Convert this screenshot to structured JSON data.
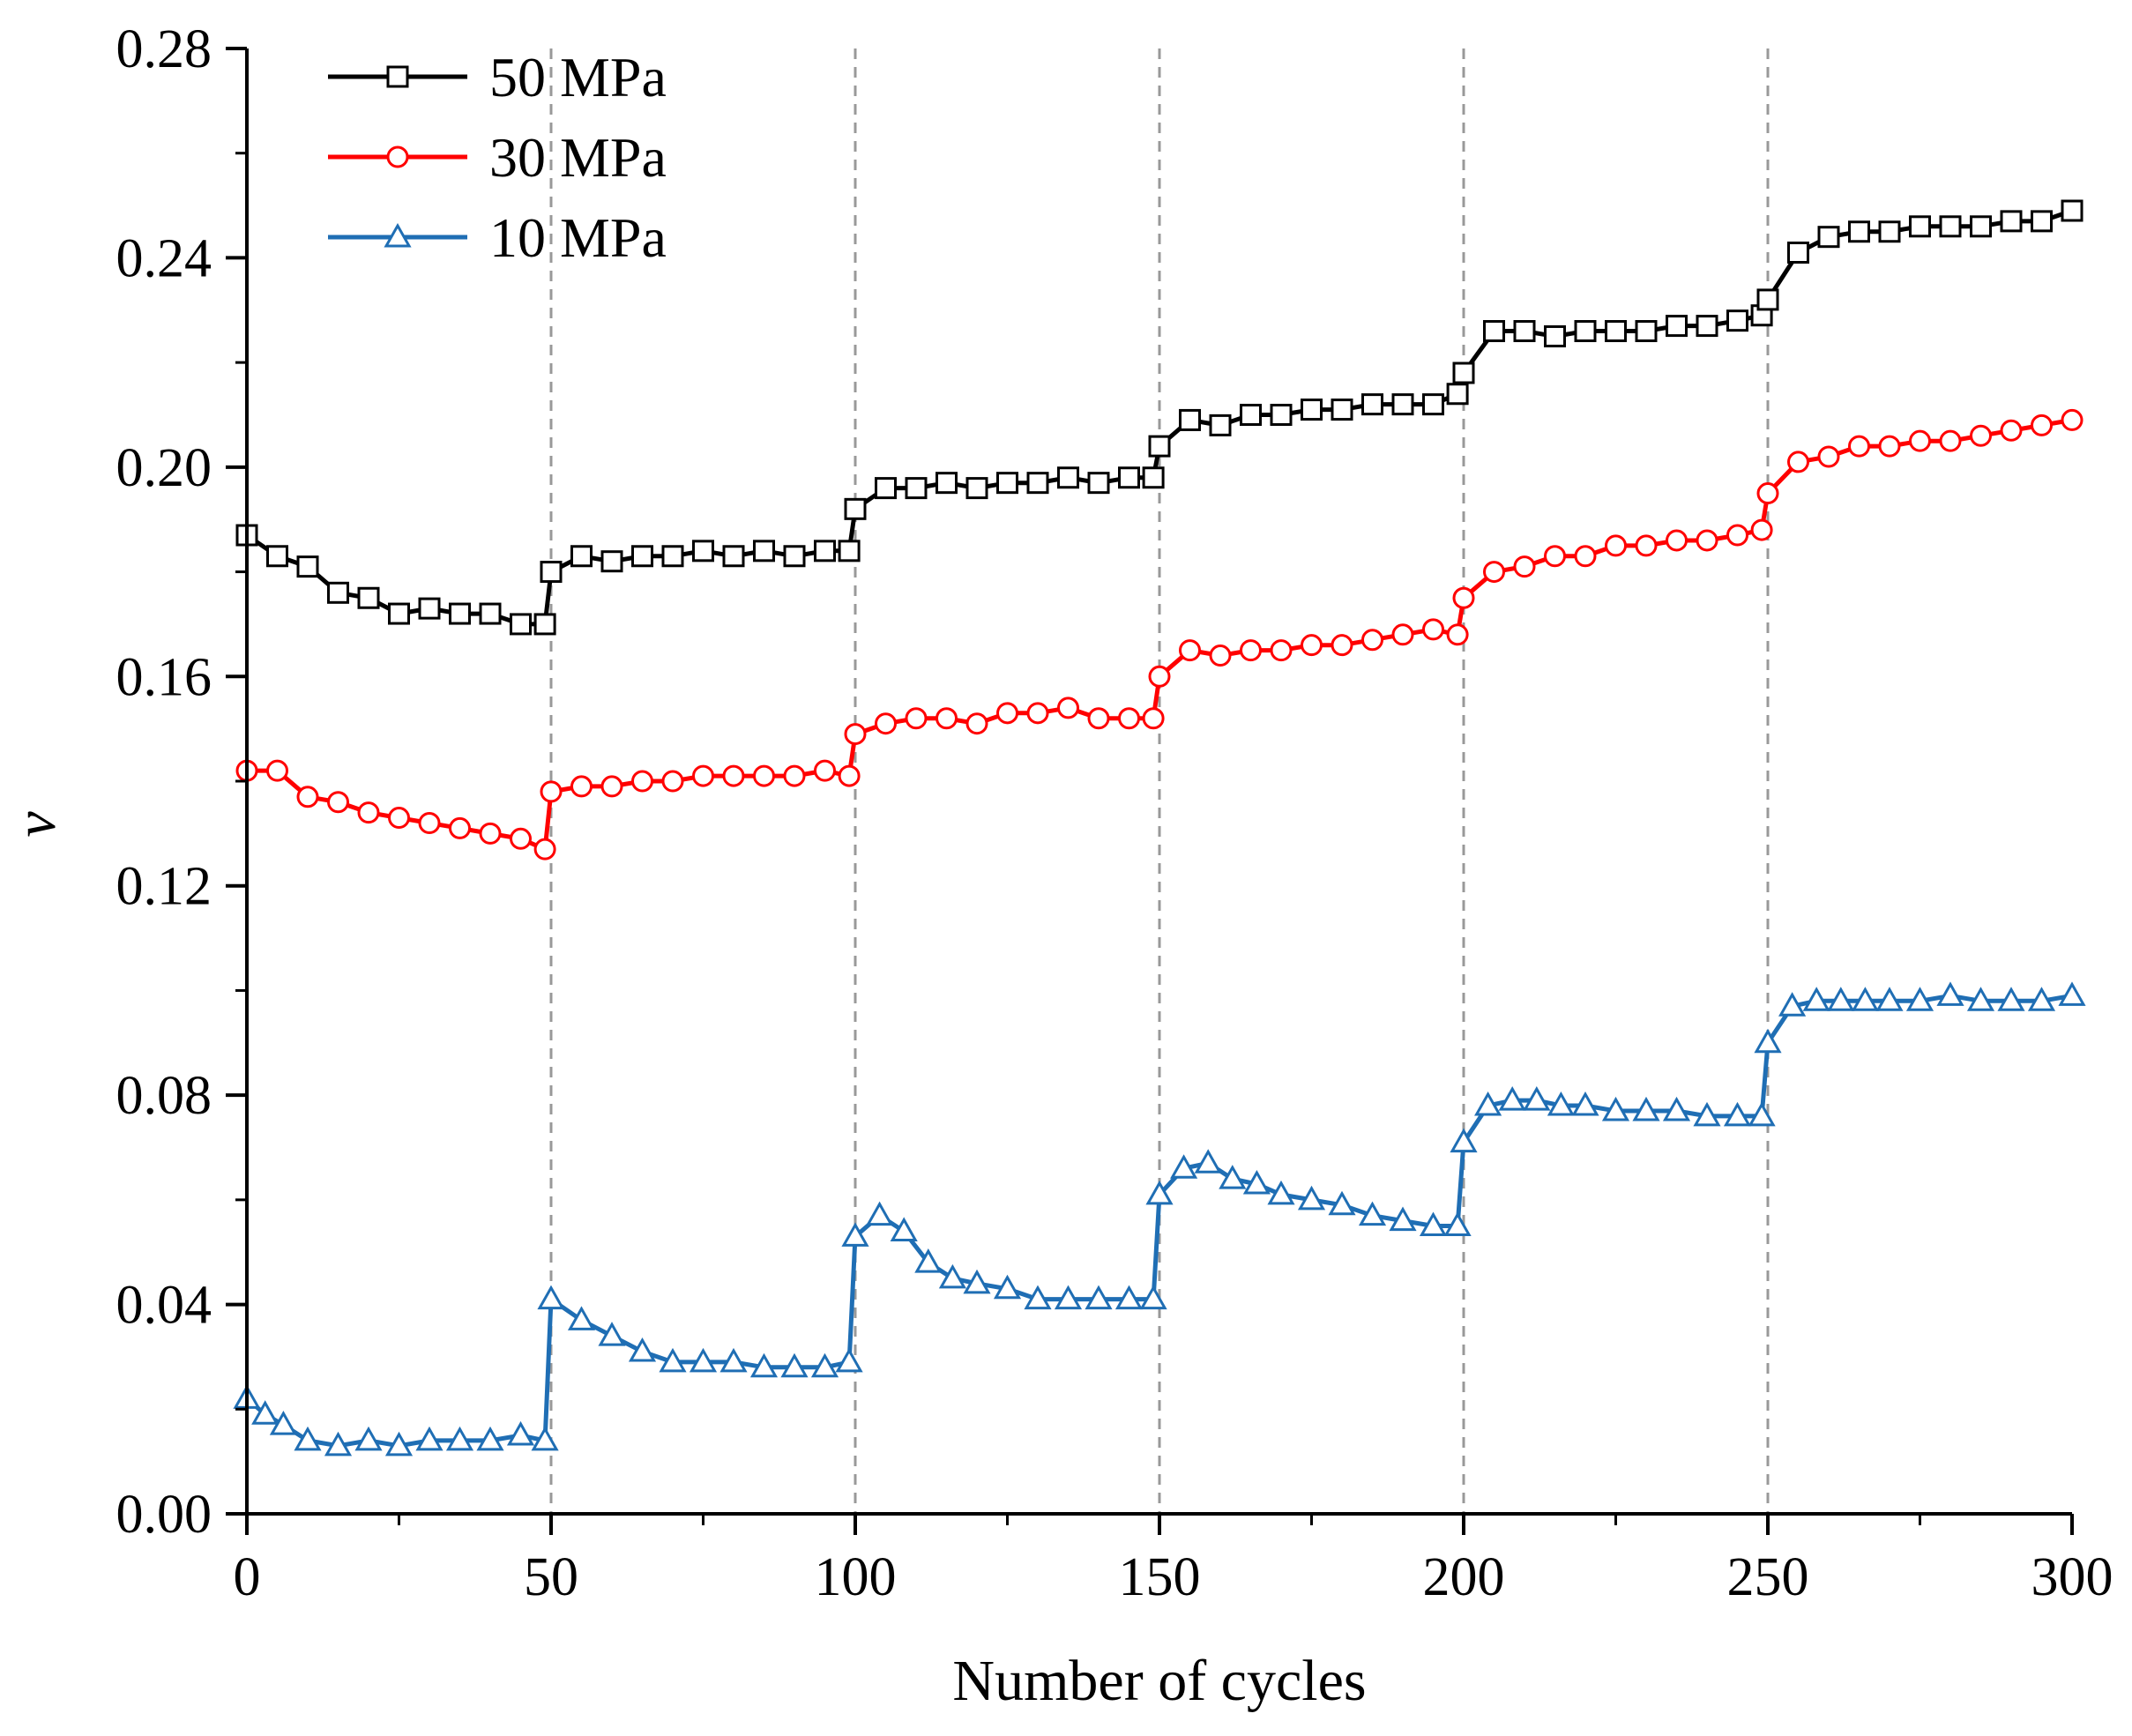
{
  "chart_data": {
    "type": "line",
    "title": "",
    "xlabel": "Number of cycles",
    "ylabel": "ν",
    "xlim": [
      0,
      300
    ],
    "ylim": [
      0.0,
      0.28
    ],
    "x_ticks": [
      "0",
      "50",
      "100",
      "150",
      "200",
      "250",
      "300"
    ],
    "y_ticks": [
      "0.00",
      "0.04",
      "0.08",
      "0.12",
      "0.16",
      "0.20",
      "0.24",
      "0.28"
    ],
    "grid": false,
    "vertical_reference_lines_x": [
      50,
      100,
      150,
      200,
      250
    ],
    "legend_position": "top-left",
    "series": [
      {
        "name": "50 MPa",
        "color": "#000000",
        "marker": "square",
        "points": [
          [
            0,
            0.187
          ],
          [
            5,
            0.183
          ],
          [
            10,
            0.181
          ],
          [
            15,
            0.176
          ],
          [
            20,
            0.175
          ],
          [
            25,
            0.172
          ],
          [
            30,
            0.173
          ],
          [
            35,
            0.172
          ],
          [
            40,
            0.172
          ],
          [
            45,
            0.17
          ],
          [
            49,
            0.17
          ],
          [
            50,
            0.18
          ],
          [
            55,
            0.183
          ],
          [
            60,
            0.182
          ],
          [
            65,
            0.183
          ],
          [
            70,
            0.183
          ],
          [
            75,
            0.184
          ],
          [
            80,
            0.183
          ],
          [
            85,
            0.184
          ],
          [
            90,
            0.183
          ],
          [
            95,
            0.184
          ],
          [
            99,
            0.184
          ],
          [
            100,
            0.192
          ],
          [
            105,
            0.196
          ],
          [
            110,
            0.196
          ],
          [
            115,
            0.197
          ],
          [
            120,
            0.196
          ],
          [
            125,
            0.197
          ],
          [
            130,
            0.197
          ],
          [
            135,
            0.198
          ],
          [
            140,
            0.197
          ],
          [
            145,
            0.198
          ],
          [
            149,
            0.198
          ],
          [
            150,
            0.204
          ],
          [
            155,
            0.209
          ],
          [
            160,
            0.208
          ],
          [
            165,
            0.21
          ],
          [
            170,
            0.21
          ],
          [
            175,
            0.211
          ],
          [
            180,
            0.211
          ],
          [
            185,
            0.212
          ],
          [
            190,
            0.212
          ],
          [
            195,
            0.212
          ],
          [
            199,
            0.214
          ],
          [
            200,
            0.218
          ],
          [
            205,
            0.226
          ],
          [
            210,
            0.226
          ],
          [
            215,
            0.225
          ],
          [
            220,
            0.226
          ],
          [
            225,
            0.226
          ],
          [
            230,
            0.226
          ],
          [
            235,
            0.227
          ],
          [
            240,
            0.227
          ],
          [
            245,
            0.228
          ],
          [
            249,
            0.229
          ],
          [
            250,
            0.232
          ],
          [
            255,
            0.241
          ],
          [
            260,
            0.244
          ],
          [
            265,
            0.245
          ],
          [
            270,
            0.245
          ],
          [
            275,
            0.246
          ],
          [
            280,
            0.246
          ],
          [
            285,
            0.246
          ],
          [
            290,
            0.247
          ],
          [
            295,
            0.247
          ],
          [
            300,
            0.249
          ]
        ]
      },
      {
        "name": "30 MPa",
        "color": "#ff0000",
        "marker": "circle",
        "points": [
          [
            0,
            0.142
          ],
          [
            5,
            0.142
          ],
          [
            10,
            0.137
          ],
          [
            15,
            0.136
          ],
          [
            20,
            0.134
          ],
          [
            25,
            0.133
          ],
          [
            30,
            0.132
          ],
          [
            35,
            0.131
          ],
          [
            40,
            0.13
          ],
          [
            45,
            0.129
          ],
          [
            49,
            0.127
          ],
          [
            50,
            0.138
          ],
          [
            55,
            0.139
          ],
          [
            60,
            0.139
          ],
          [
            65,
            0.14
          ],
          [
            70,
            0.14
          ],
          [
            75,
            0.141
          ],
          [
            80,
            0.141
          ],
          [
            85,
            0.141
          ],
          [
            90,
            0.141
          ],
          [
            95,
            0.142
          ],
          [
            99,
            0.141
          ],
          [
            100,
            0.149
          ],
          [
            105,
            0.151
          ],
          [
            110,
            0.152
          ],
          [
            115,
            0.152
          ],
          [
            120,
            0.151
          ],
          [
            125,
            0.153
          ],
          [
            130,
            0.153
          ],
          [
            135,
            0.154
          ],
          [
            140,
            0.152
          ],
          [
            145,
            0.152
          ],
          [
            149,
            0.152
          ],
          [
            150,
            0.16
          ],
          [
            155,
            0.165
          ],
          [
            160,
            0.164
          ],
          [
            165,
            0.165
          ],
          [
            170,
            0.165
          ],
          [
            175,
            0.166
          ],
          [
            180,
            0.166
          ],
          [
            185,
            0.167
          ],
          [
            190,
            0.168
          ],
          [
            195,
            0.169
          ],
          [
            199,
            0.168
          ],
          [
            200,
            0.175
          ],
          [
            205,
            0.18
          ],
          [
            210,
            0.181
          ],
          [
            215,
            0.183
          ],
          [
            220,
            0.183
          ],
          [
            225,
            0.185
          ],
          [
            230,
            0.185
          ],
          [
            235,
            0.186
          ],
          [
            240,
            0.186
          ],
          [
            245,
            0.187
          ],
          [
            249,
            0.188
          ],
          [
            250,
            0.195
          ],
          [
            255,
            0.201
          ],
          [
            260,
            0.202
          ],
          [
            265,
            0.204
          ],
          [
            270,
            0.204
          ],
          [
            275,
            0.205
          ],
          [
            280,
            0.205
          ],
          [
            285,
            0.206
          ],
          [
            290,
            0.207
          ],
          [
            295,
            0.208
          ],
          [
            300,
            0.209
          ]
        ]
      },
      {
        "name": "10 MPa",
        "color": "#1f6eb4",
        "marker": "triangle",
        "points": [
          [
            0,
            0.022
          ],
          [
            3,
            0.019
          ],
          [
            6,
            0.017
          ],
          [
            10,
            0.014
          ],
          [
            15,
            0.013
          ],
          [
            20,
            0.014
          ],
          [
            25,
            0.013
          ],
          [
            30,
            0.014
          ],
          [
            35,
            0.014
          ],
          [
            40,
            0.014
          ],
          [
            45,
            0.015
          ],
          [
            49,
            0.014
          ],
          [
            50,
            0.041
          ],
          [
            55,
            0.037
          ],
          [
            60,
            0.034
          ],
          [
            65,
            0.031
          ],
          [
            70,
            0.029
          ],
          [
            75,
            0.029
          ],
          [
            80,
            0.029
          ],
          [
            85,
            0.028
          ],
          [
            90,
            0.028
          ],
          [
            95,
            0.028
          ],
          [
            99,
            0.029
          ],
          [
            100,
            0.053
          ],
          [
            104,
            0.057
          ],
          [
            108,
            0.054
          ],
          [
            112,
            0.048
          ],
          [
            116,
            0.045
          ],
          [
            120,
            0.044
          ],
          [
            125,
            0.043
          ],
          [
            130,
            0.041
          ],
          [
            135,
            0.041
          ],
          [
            140,
            0.041
          ],
          [
            145,
            0.041
          ],
          [
            149,
            0.041
          ],
          [
            150,
            0.061
          ],
          [
            154,
            0.066
          ],
          [
            158,
            0.067
          ],
          [
            162,
            0.064
          ],
          [
            166,
            0.063
          ],
          [
            170,
            0.061
          ],
          [
            175,
            0.06
          ],
          [
            180,
            0.059
          ],
          [
            185,
            0.057
          ],
          [
            190,
            0.056
          ],
          [
            195,
            0.055
          ],
          [
            199,
            0.055
          ],
          [
            200,
            0.071
          ],
          [
            204,
            0.078
          ],
          [
            208,
            0.079
          ],
          [
            212,
            0.079
          ],
          [
            216,
            0.078
          ],
          [
            220,
            0.078
          ],
          [
            225,
            0.077
          ],
          [
            230,
            0.077
          ],
          [
            235,
            0.077
          ],
          [
            240,
            0.076
          ],
          [
            245,
            0.076
          ],
          [
            249,
            0.076
          ],
          [
            250,
            0.09
          ],
          [
            254,
            0.097
          ],
          [
            258,
            0.098
          ],
          [
            262,
            0.098
          ],
          [
            266,
            0.098
          ],
          [
            270,
            0.098
          ],
          [
            275,
            0.098
          ],
          [
            280,
            0.099
          ],
          [
            285,
            0.098
          ],
          [
            290,
            0.098
          ],
          [
            295,
            0.098
          ],
          [
            300,
            0.099
          ]
        ]
      }
    ]
  }
}
